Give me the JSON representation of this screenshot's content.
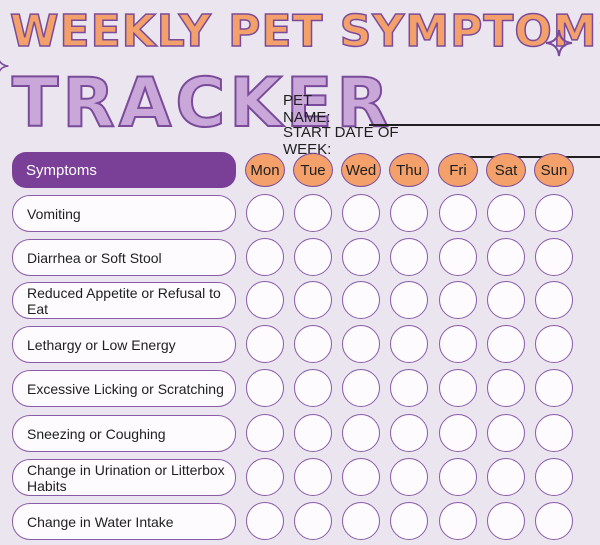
{
  "title": {
    "line1": "WEEKLY PET SYMPTOMS",
    "line2": "TRACKER"
  },
  "fields": {
    "pet_name_label": "PET NAME:",
    "start_date_label": "START DATE OF WEEK:"
  },
  "table": {
    "header_label": "Symptoms",
    "days": [
      "Mon",
      "Tue",
      "Wed",
      "Thu",
      "Fri",
      "Sat",
      "Sun"
    ],
    "symptoms": [
      "Vomiting",
      "Diarrhea or Soft Stool",
      "Reduced Appetite or Refusal to Eat",
      "Lethargy or Low Energy",
      "Excessive Licking or Scratching",
      "Sneezing or Coughing",
      "Change in Urination or Litterbox Habits",
      "Change in Water Intake"
    ]
  },
  "colors": {
    "background": "#ebe5ef",
    "accent_orange": "#f3a06a",
    "accent_purple": "#7a3f97",
    "lavender": "#c9a8d9"
  },
  "icons": [
    "sparkle-icon"
  ]
}
